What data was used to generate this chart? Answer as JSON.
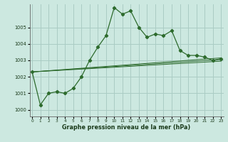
{
  "xlabel": "Graphe pression niveau de la mer (hPa)",
  "background_color": "#cce8e0",
  "grid_color": "#aaccc4",
  "line_color": "#2d6b2d",
  "x_ticks": [
    0,
    1,
    2,
    3,
    4,
    5,
    6,
    7,
    8,
    9,
    10,
    11,
    12,
    13,
    14,
    15,
    16,
    17,
    18,
    19,
    20,
    21,
    22,
    23
  ],
  "y_ticks": [
    1000,
    1001,
    1002,
    1003,
    1004,
    1005
  ],
  "ylim": [
    999.6,
    1006.4
  ],
  "xlim": [
    -0.3,
    23.3
  ],
  "main_series": [
    1002.3,
    1000.3,
    1001.0,
    1001.1,
    1001.0,
    1001.3,
    1002.0,
    1003.0,
    1003.8,
    1004.5,
    1006.2,
    1005.8,
    1006.0,
    1005.0,
    1004.4,
    1004.6,
    1004.5,
    1004.8,
    1003.6,
    1003.3,
    1003.3,
    1003.2,
    1003.0,
    1003.1
  ],
  "ref_lines": [
    {
      "x0": 0,
      "y0": 1002.3,
      "x1": 23,
      "y1": 1003.15
    },
    {
      "x0": 0,
      "y0": 1002.3,
      "x1": 23,
      "y1": 1003.05
    },
    {
      "x0": 0,
      "y0": 1002.3,
      "x1": 23,
      "y1": 1002.95
    }
  ]
}
